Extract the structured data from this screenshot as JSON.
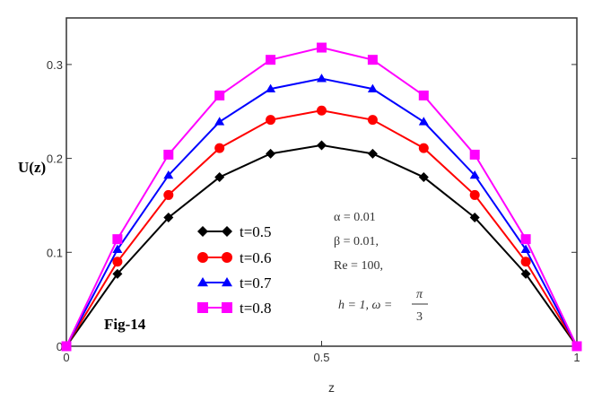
{
  "chart_data": {
    "type": "line",
    "title": "",
    "xlabel": "z",
    "ylabel": "U(z)",
    "xlim": [
      0,
      1
    ],
    "ylim": [
      0,
      0.35
    ],
    "x_ticks": [
      "0",
      "0.5",
      "1"
    ],
    "y_ticks": [
      "0",
      "0.1",
      "0.2",
      "0.3"
    ],
    "grid": false,
    "legend_placement": "bottom-left",
    "x": [
      0,
      0.1,
      0.2,
      0.3,
      0.4,
      0.5,
      0.6,
      0.7,
      0.8,
      0.9,
      1.0
    ],
    "series": [
      {
        "name": "t=0.5",
        "color": "#000000",
        "marker": "diamond",
        "values": [
          0,
          0.077,
          0.137,
          0.18,
          0.205,
          0.214,
          0.205,
          0.18,
          0.137,
          0.077,
          0
        ]
      },
      {
        "name": "t=0.6",
        "color": "#ff0000",
        "marker": "circle",
        "values": [
          0,
          0.09,
          0.161,
          0.211,
          0.241,
          0.251,
          0.241,
          0.211,
          0.161,
          0.09,
          0
        ]
      },
      {
        "name": "t=0.7",
        "color": "#0000ff",
        "marker": "triangle",
        "values": [
          0,
          0.103,
          0.182,
          0.239,
          0.274,
          0.285,
          0.274,
          0.239,
          0.182,
          0.103,
          0
        ]
      },
      {
        "name": "t=0.8",
        "color": "#ff00ff",
        "marker": "square",
        "values": [
          0,
          0.114,
          0.204,
          0.267,
          0.305,
          0.318,
          0.305,
          0.267,
          0.204,
          0.114,
          0
        ]
      }
    ],
    "annotations": {
      "fig_label": "Fig-14",
      "params": [
        "α = 0.01",
        "β = 0.01,",
        "Re = 100,",
        "h = 1, ω = "
      ],
      "omega_num": "π",
      "omega_den": "3"
    }
  }
}
